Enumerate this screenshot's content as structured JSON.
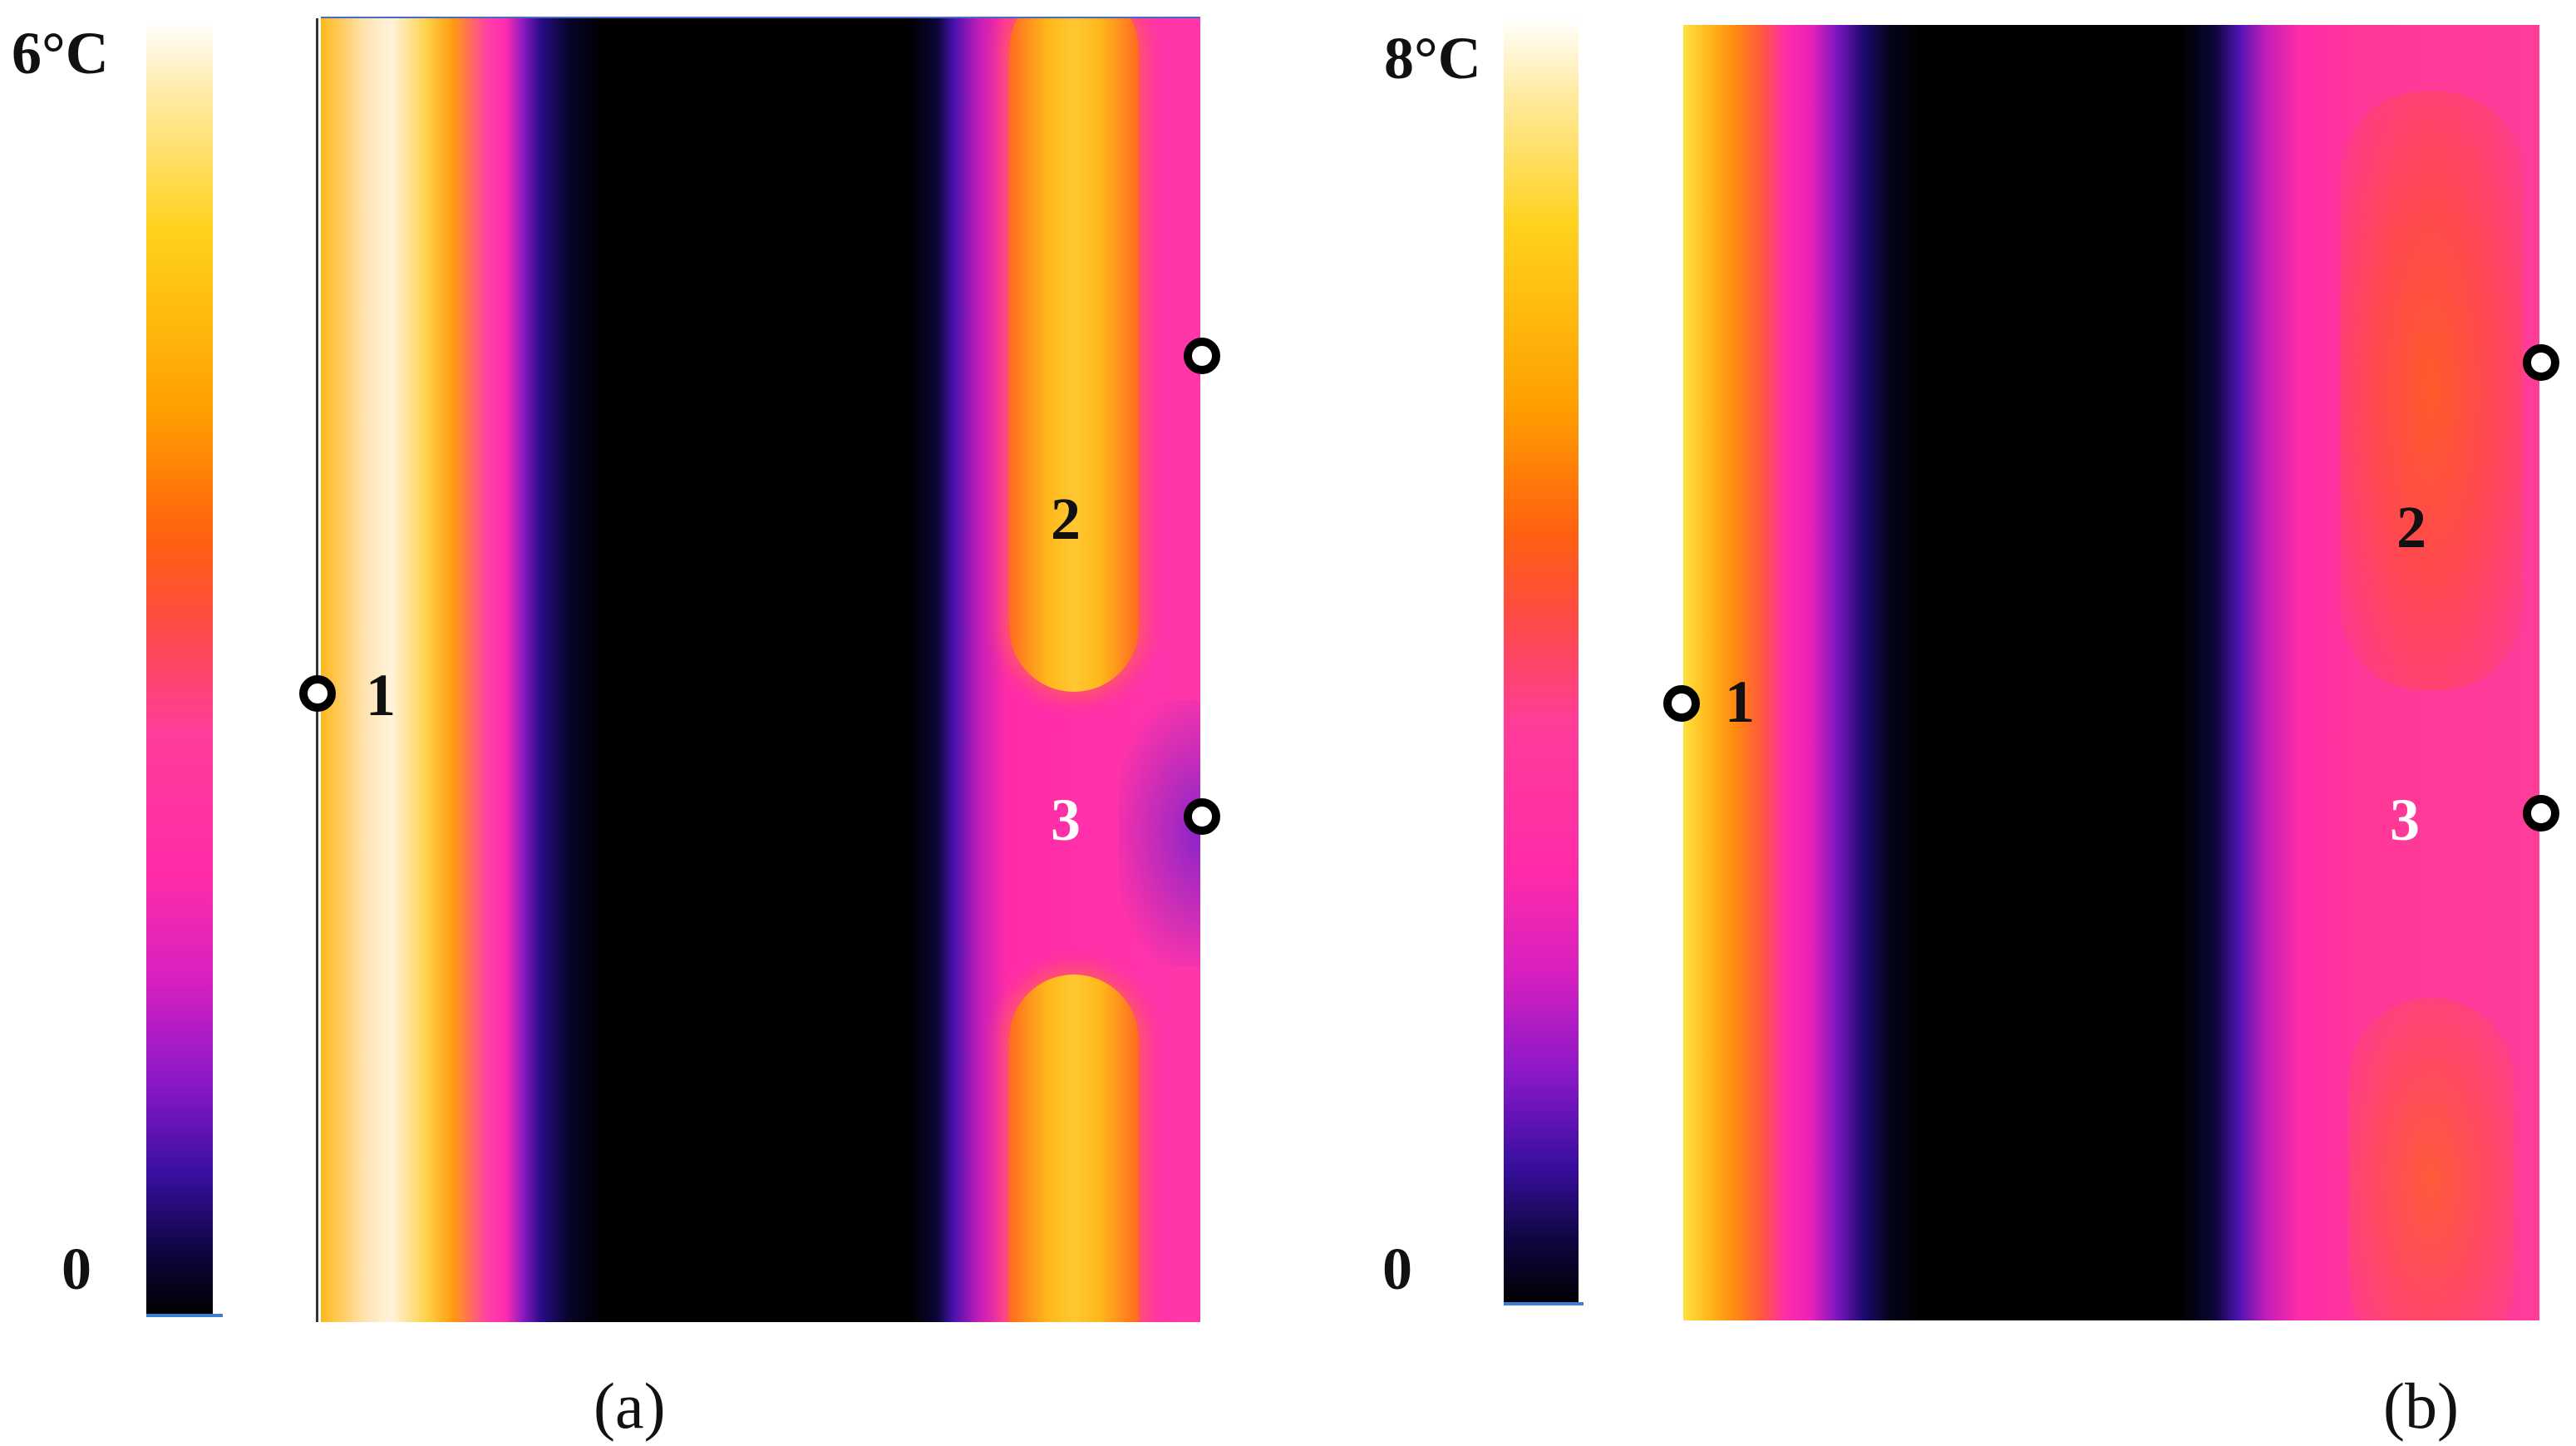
{
  "panels": [
    {
      "id": "a",
      "caption": "(a)",
      "scale_max": "6°C",
      "scale_min": "0",
      "markers": [
        {
          "label": "1"
        },
        {
          "label": "2"
        },
        {
          "label": "3"
        }
      ]
    },
    {
      "id": "b",
      "caption": "(b)",
      "scale_max": "8°C",
      "scale_min": "0",
      "markers": [
        {
          "label": "1"
        },
        {
          "label": "2"
        },
        {
          "label": "3"
        }
      ]
    }
  ],
  "colors": {
    "cold": "#000000",
    "mid": "#ff2ca8",
    "warm": "#ffa000",
    "hot": "#ffffff",
    "marker_ring": "#000000"
  }
}
